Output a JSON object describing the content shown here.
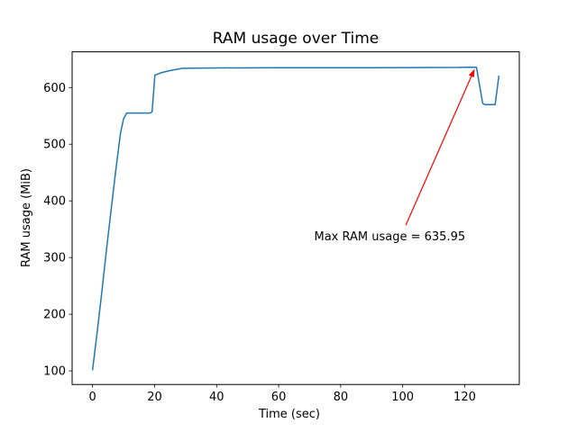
{
  "figure": {
    "background": "#ffffff",
    "axis_color": "#000000"
  },
  "chart_data": {
    "type": "line",
    "title": "RAM usage over Time",
    "xlabel": "Time (sec)",
    "ylabel": "RAM usage (MiB)",
    "xlim": [
      -6.6,
      137.6
    ],
    "ylim": [
      76,
      663
    ],
    "xticks": [
      0,
      20,
      40,
      60,
      80,
      100,
      120
    ],
    "yticks": [
      100,
      200,
      300,
      400,
      500,
      600
    ],
    "grid": false,
    "legend": null,
    "line_color": "#1f77b4",
    "series": [
      {
        "name": "RAM usage",
        "points": [
          [
            0,
            102
          ],
          [
            1.5,
            170
          ],
          [
            3,
            240
          ],
          [
            4.5,
            315
          ],
          [
            6,
            385
          ],
          [
            7.5,
            455
          ],
          [
            9,
            520
          ],
          [
            10,
            545
          ],
          [
            11,
            555
          ],
          [
            18.5,
            555
          ],
          [
            19.2,
            557
          ],
          [
            20.1,
            622
          ],
          [
            22,
            626
          ],
          [
            25,
            630
          ],
          [
            29,
            634
          ],
          [
            40,
            634.5
          ],
          [
            60,
            635
          ],
          [
            90,
            635
          ],
          [
            110,
            635.3
          ],
          [
            118,
            635.5
          ],
          [
            121,
            635.95
          ],
          [
            123.8,
            635.9
          ],
          [
            125.8,
            572
          ],
          [
            126.5,
            570
          ],
          [
            129.8,
            570
          ],
          [
            131,
            620
          ]
        ]
      }
    ],
    "annotation": {
      "text": "Max RAM usage = 635.95",
      "color": "#ff0000",
      "arrow_tip_xy": [
        123.2,
        633
      ],
      "arrow_tail_xy": [
        101,
        357
      ],
      "text_anchor_xy": [
        71.4,
        330
      ]
    }
  }
}
